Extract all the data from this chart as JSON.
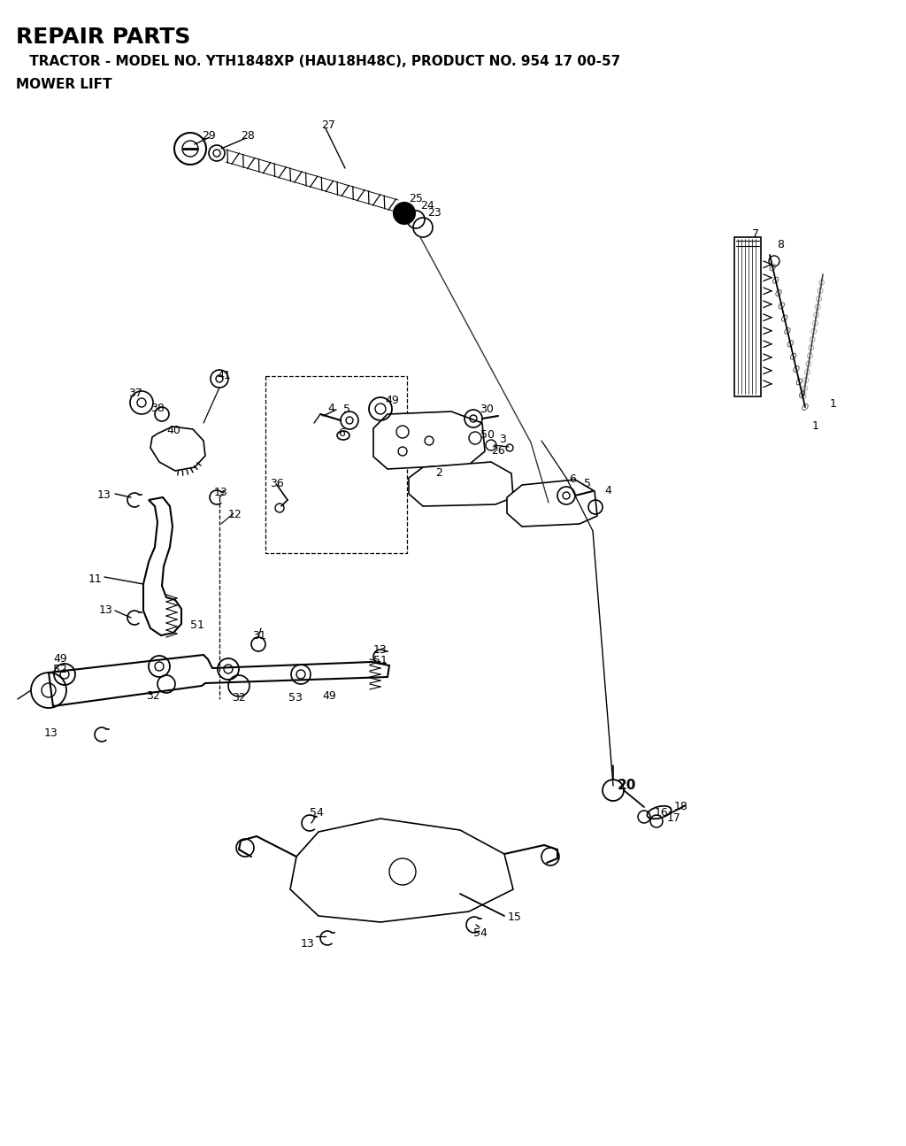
{
  "title": "REPAIR PARTS",
  "subtitle": " TRACTOR - MODEL NO. YTH1848XP (HAU18H48C), PRODUCT NO. 954 17 00-57",
  "subtitle2": "MOWER LIFT",
  "bg_color": "#ffffff",
  "fig_width": 10.24,
  "fig_height": 12.95
}
